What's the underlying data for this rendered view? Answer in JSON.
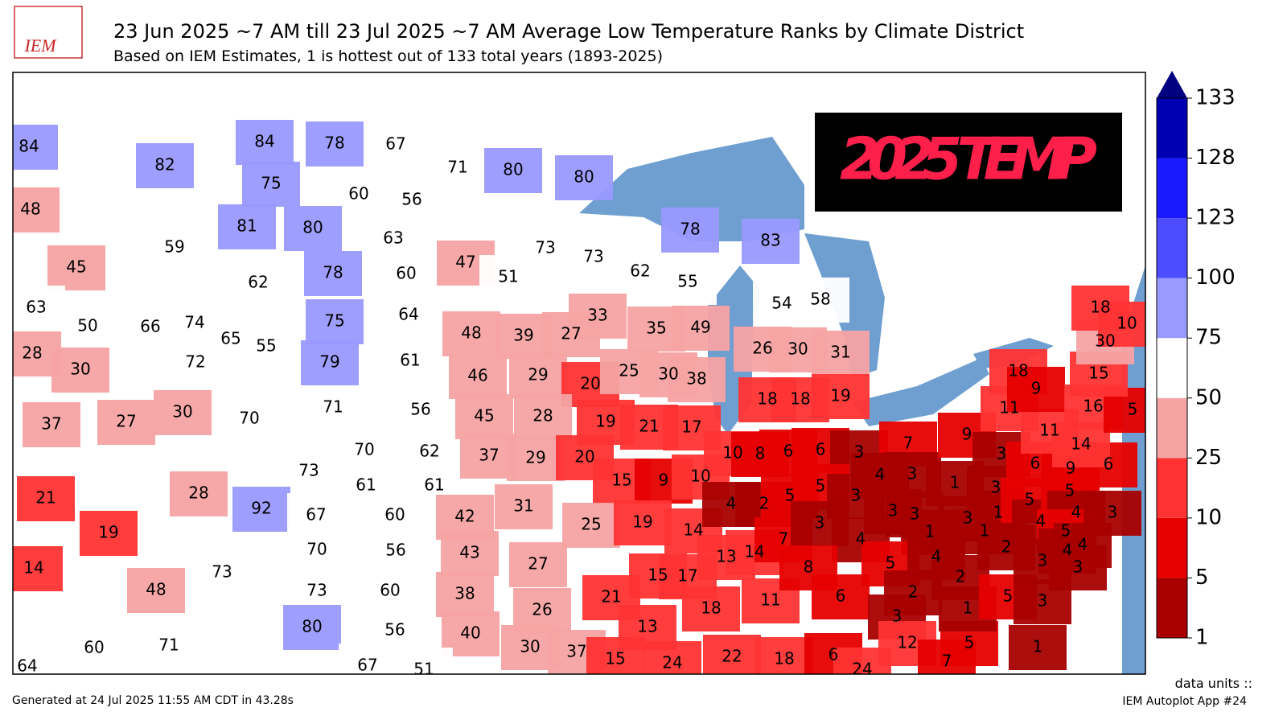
{
  "header": {
    "logo": "IEM",
    "title": "23 Jun 2025 ~7 AM till 23 Jul 2025 ~7 AM Average Low Temperature Ranks by Climate District",
    "subtitle": "Based on IEM Estimates, 1 is hottest out of 133 total years (1893-2025)"
  },
  "banner": "2025 TEMP",
  "colorbar": {
    "levels": [
      1,
      5,
      10,
      25,
      50,
      75,
      100,
      123,
      128,
      133
    ],
    "colors": [
      "#a80000",
      "#e60000",
      "#ff3333",
      "#f5a3a3",
      "#ffffff",
      "#9999ff",
      "#4d4dff",
      "#1a1aff",
      "#0000b3"
    ],
    "extend_color": "#000080"
  },
  "districts": {
    "values": [
      84,
      82,
      48,
      59,
      45,
      84,
      78,
      67,
      75,
      60,
      56,
      81,
      80,
      63,
      71,
      80,
      80,
      62,
      78,
      60,
      64,
      75,
      79,
      61,
      65,
      55,
      63,
      50,
      66,
      74,
      28,
      30,
      72,
      37,
      27,
      30,
      70,
      71,
      56,
      73,
      70,
      62,
      61,
      61,
      47,
      51,
      73,
      73,
      62,
      55,
      78,
      83,
      54,
      58,
      48,
      39,
      27,
      33,
      35,
      49,
      26,
      30,
      31,
      46,
      29,
      20,
      25,
      30,
      38,
      18,
      18,
      19,
      45,
      28,
      19,
      21,
      17,
      37,
      29,
      20,
      15,
      9,
      10,
      10,
      8,
      6,
      6,
      3,
      7,
      31,
      25,
      19,
      14,
      4,
      2,
      5,
      5,
      3,
      4,
      3,
      42,
      43,
      27,
      38,
      26,
      21,
      15,
      17,
      13,
      14,
      7,
      3,
      4,
      3,
      3,
      1,
      40,
      13,
      18,
      11,
      8,
      6,
      5,
      4,
      2,
      3,
      30,
      37,
      15,
      24,
      22,
      18,
      6,
      24,
      12,
      5,
      7,
      1,
      1,
      3,
      1,
      3,
      1,
      2,
      2,
      1,
      5,
      3,
      9,
      3,
      6,
      5,
      4,
      5,
      9,
      4,
      5,
      4,
      3,
      4,
      3,
      3,
      6,
      11,
      11,
      14,
      18,
      9,
      16,
      5,
      15,
      30,
      18,
      10,
      21,
      19,
      14,
      28,
      92,
      73,
      48,
      67,
      60,
      70,
      56,
      73,
      60,
      64,
      60,
      71,
      80,
      56,
      67,
      51
    ]
  },
  "footer": {
    "generated": "Generated at 24 Jul 2025 11:55 AM CDT in 43.28s",
    "units": "data units ::",
    "app": "IEM Autoplot App #24"
  }
}
